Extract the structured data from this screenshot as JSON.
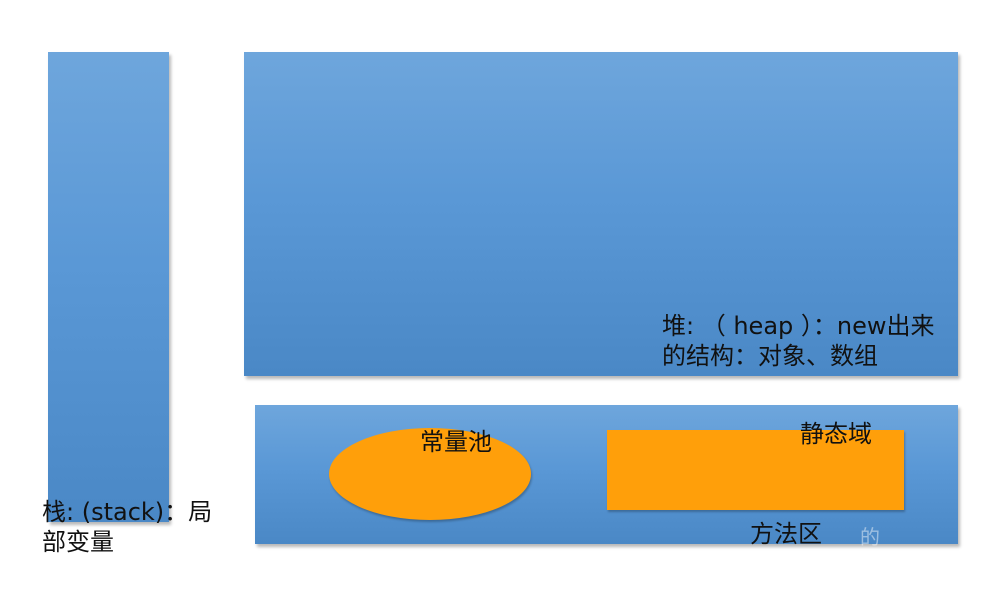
{
  "blocks": {
    "heap": {
      "label_line1": "堆: （ heap ）：new出来",
      "label_line2": "的结构：对象、数组"
    },
    "stack": {
      "label_line1": "栈: (stack)：局",
      "label_line2": "部变量"
    },
    "method_area": {
      "label": "方法区",
      "constant_pool": "常量池",
      "static_field": "静态域"
    }
  },
  "watermark": "的",
  "colors": {
    "block_blue": "#5a98d6",
    "highlight_orange": "#ff9f0a",
    "text": "#111111"
  }
}
